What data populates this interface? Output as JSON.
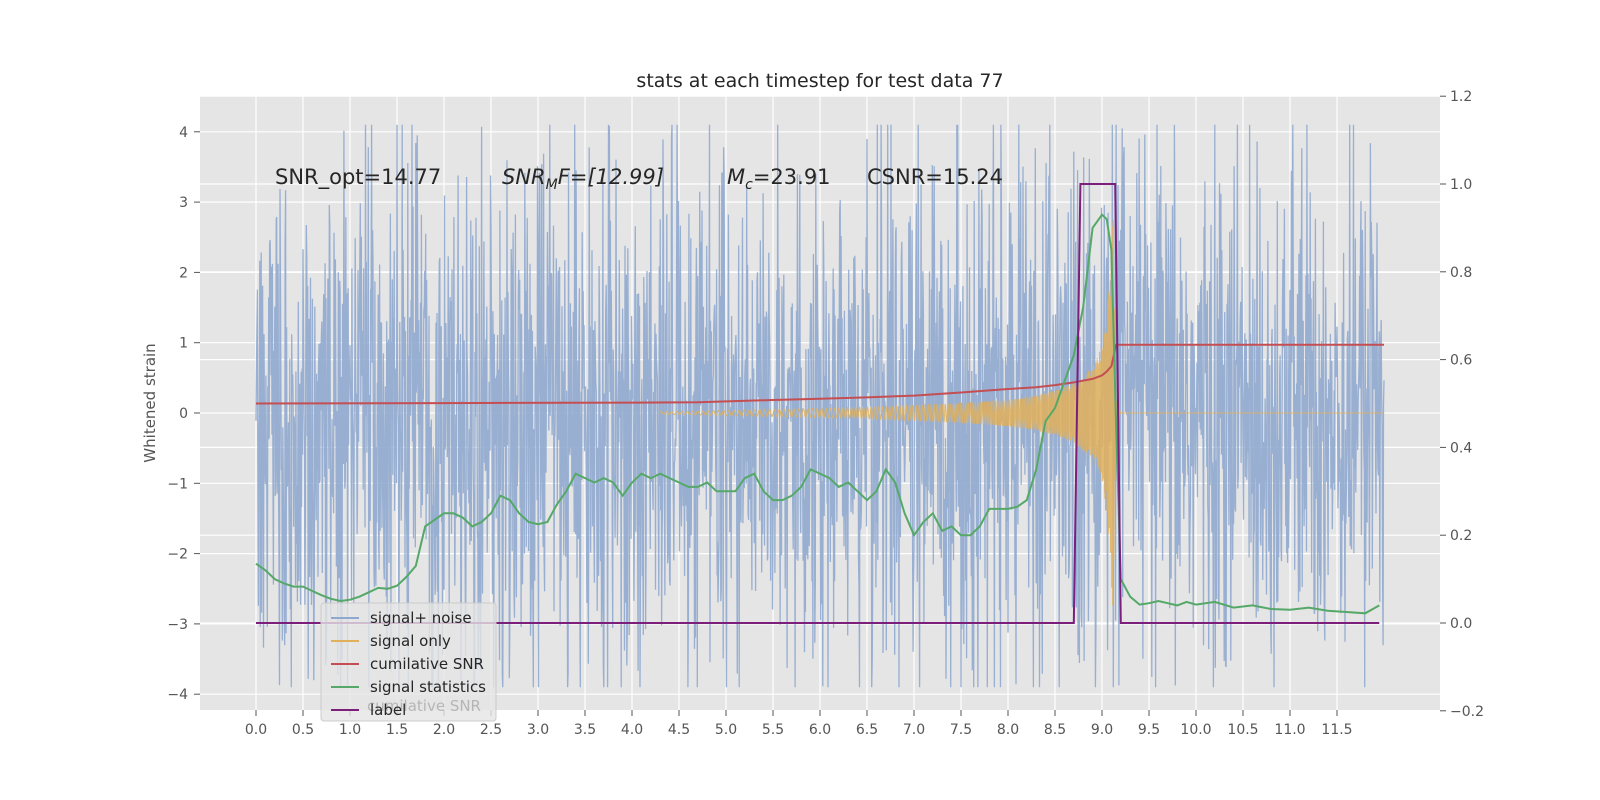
{
  "chart_data": {
    "type": "line",
    "title": "stats at each timestep for test data 77",
    "ylabel": "Whitened strain",
    "xlabel": "",
    "xlim": [
      -0.58,
      12.6
    ],
    "ylim": [
      -4.4,
      4.5
    ],
    "y2lim": [
      -0.2,
      1.2
    ],
    "x_ticks": [
      "0.0",
      "0.5",
      "1.0",
      "1.5",
      "2.0",
      "2.5",
      "3.0",
      "3.5",
      "4.0",
      "4.5",
      "5.0",
      "5.5",
      "6.0",
      "6.5",
      "7.0",
      "7.5",
      "8.0",
      "8.5",
      "9.0",
      "9.5",
      "10.0",
      "10.5",
      "11.0",
      "11.5"
    ],
    "y_ticks": [
      "4",
      "3",
      "2",
      "1",
      "0",
      "−1",
      "−2",
      "−3",
      "−4"
    ],
    "y2_ticks": [
      "1.2",
      "1.0",
      "0.8",
      "0.6",
      "0.4",
      "0.2",
      "0.0",
      "−0.2"
    ],
    "grid": true,
    "legend_position": "lower-left",
    "annotations": {
      "snr_opt": "SNR_opt=14.77",
      "snr_mf_name": "SNR",
      "snr_mf_sub": "M",
      "snr_mf_rest": "F=[12.99]",
      "mc_name": "M",
      "mc_sub": "c",
      "mc_rest": "=23.91",
      "csnr": "CSNR=15.24"
    },
    "series": [
      {
        "name": "signal+ noise",
        "color": "#8fa8cf",
        "axis": "left",
        "style": "noise band, roughly ±2 with spikes to ±4",
        "amplitude_envelope": {
          "x": [
            0,
            2,
            4,
            6,
            8,
            9,
            10,
            12
          ],
          "y": [
            2.3,
            2.4,
            2.4,
            2.3,
            2.4,
            2.6,
            2.4,
            2.3
          ]
        }
      },
      {
        "name": "signal only",
        "color": "#e0b05a",
        "axis": "left",
        "style": "chirp oscillation growing toward merger",
        "envelope": {
          "x": [
            0,
            4.5,
            5.5,
            6.5,
            7.0,
            7.5,
            8.0,
            8.3,
            8.5,
            8.7,
            8.9,
            9.0,
            9.05,
            9.1,
            9.12,
            9.15,
            9.2
          ],
          "y": [
            0.0,
            0.02,
            0.05,
            0.08,
            0.11,
            0.14,
            0.19,
            0.25,
            0.32,
            0.42,
            0.65,
            0.95,
            1.4,
            2.4,
            3.0,
            0.2,
            0.0
          ]
        }
      },
      {
        "name": "cumilative SNR",
        "color": "#c44e52",
        "axis": "right",
        "x": [
          0,
          2,
          4,
          4.7,
          5.5,
          6.0,
          6.5,
          7.0,
          7.5,
          8.0,
          8.3,
          8.5,
          8.7,
          8.9,
          9.0,
          9.05,
          9.1,
          9.15,
          12.0
        ],
        "y": [
          0.5,
          0.501,
          0.502,
          0.503,
          0.508,
          0.511,
          0.514,
          0.518,
          0.525,
          0.533,
          0.537,
          0.542,
          0.548,
          0.556,
          0.564,
          0.573,
          0.585,
          0.634,
          0.634
        ]
      },
      {
        "name": "signal statistics",
        "color": "#55a868",
        "axis": "right",
        "x": [
          0,
          0.1,
          0.2,
          0.3,
          0.4,
          0.5,
          0.6,
          0.7,
          0.8,
          0.9,
          1.0,
          1.1,
          1.2,
          1.3,
          1.4,
          1.5,
          1.6,
          1.7,
          1.8,
          1.9,
          2.0,
          2.1,
          2.2,
          2.3,
          2.4,
          2.5,
          2.6,
          2.7,
          2.8,
          2.9,
          3.0,
          3.1,
          3.2,
          3.3,
          3.4,
          3.5,
          3.6,
          3.7,
          3.8,
          3.9,
          4.0,
          4.1,
          4.2,
          4.3,
          4.4,
          4.5,
          4.6,
          4.7,
          4.8,
          4.9,
          5.0,
          5.1,
          5.2,
          5.3,
          5.4,
          5.5,
          5.6,
          5.7,
          5.8,
          5.9,
          6.0,
          6.1,
          6.2,
          6.3,
          6.4,
          6.5,
          6.6,
          6.7,
          6.8,
          6.9,
          7.0,
          7.1,
          7.2,
          7.3,
          7.4,
          7.5,
          7.6,
          7.7,
          7.8,
          7.9,
          8.0,
          8.1,
          8.2,
          8.3,
          8.4,
          8.5,
          8.6,
          8.7,
          8.8,
          8.9,
          9.0,
          9.05,
          9.1,
          9.15,
          9.2,
          9.3,
          9.4,
          9.5,
          9.6,
          9.7,
          9.8,
          9.9,
          10.0,
          10.2,
          10.4,
          10.6,
          10.8,
          11.0,
          11.2,
          11.4,
          11.6,
          11.8,
          11.95
        ],
        "y": [
          0.135,
          0.12,
          0.1,
          0.09,
          0.083,
          0.083,
          0.073,
          0.063,
          0.055,
          0.05,
          0.053,
          0.06,
          0.07,
          0.08,
          0.078,
          0.085,
          0.105,
          0.13,
          0.22,
          0.235,
          0.25,
          0.25,
          0.24,
          0.22,
          0.23,
          0.25,
          0.29,
          0.28,
          0.25,
          0.23,
          0.225,
          0.23,
          0.27,
          0.3,
          0.34,
          0.33,
          0.32,
          0.33,
          0.32,
          0.29,
          0.32,
          0.34,
          0.33,
          0.34,
          0.33,
          0.32,
          0.31,
          0.31,
          0.32,
          0.3,
          0.3,
          0.3,
          0.33,
          0.34,
          0.3,
          0.28,
          0.28,
          0.29,
          0.31,
          0.35,
          0.34,
          0.33,
          0.31,
          0.32,
          0.3,
          0.28,
          0.3,
          0.35,
          0.32,
          0.25,
          0.2,
          0.23,
          0.25,
          0.21,
          0.22,
          0.2,
          0.2,
          0.22,
          0.26,
          0.26,
          0.26,
          0.265,
          0.28,
          0.35,
          0.46,
          0.49,
          0.55,
          0.61,
          0.72,
          0.9,
          0.93,
          0.92,
          0.85,
          0.45,
          0.1,
          0.06,
          0.042,
          0.045,
          0.05,
          0.045,
          0.04,
          0.048,
          0.042,
          0.048,
          0.035,
          0.04,
          0.032,
          0.03,
          0.035,
          0.028,
          0.025,
          0.022,
          0.04
        ]
      },
      {
        "name": "label",
        "color": "#7b1f7b",
        "axis": "right",
        "x": [
          0,
          8.7,
          8.77,
          9.14,
          9.2,
          11.95
        ],
        "y": [
          0,
          0,
          1,
          1,
          0,
          0
        ]
      }
    ],
    "hidden_legend_entry": "cumilative SNR"
  }
}
